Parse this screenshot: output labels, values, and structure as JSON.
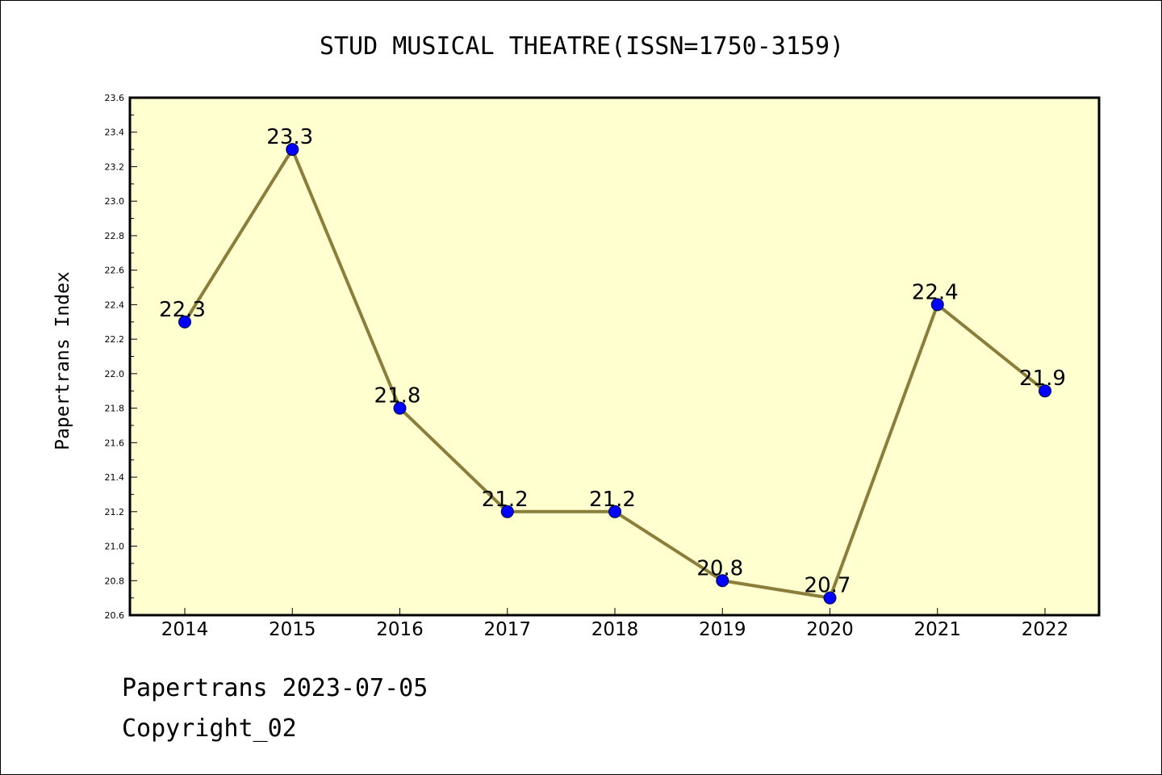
{
  "chart_data": {
    "type": "line",
    "title": "STUD MUSICAL THEATRE(ISSN=1750-3159)",
    "xlabel": "",
    "ylabel": "Papertrans Index",
    "categories": [
      "2014",
      "2015",
      "2016",
      "2017",
      "2018",
      "2019",
      "2020",
      "2021",
      "2022"
    ],
    "series": [
      {
        "values": [
          22.3,
          23.3,
          21.8,
          21.2,
          21.2,
          20.8,
          20.7,
          22.4,
          21.9
        ]
      }
    ],
    "data_labels": [
      "22.3",
      "23.3",
      "21.8",
      "21.2",
      "21.2",
      "20.8",
      "20.7",
      "22.4",
      "21.9"
    ],
    "ylim": [
      20.6,
      23.6
    ],
    "yticks": [
      "20.6",
      "20.8",
      "21.0",
      "21.2",
      "21.4",
      "21.6",
      "21.8",
      "22.0",
      "22.2",
      "22.4",
      "22.6",
      "22.8",
      "23.0",
      "23.2",
      "23.4",
      "23.6"
    ],
    "grid": false,
    "legend": "none",
    "colors": {
      "plot_background": "#ffffd0",
      "line": "#8b7d3a",
      "marker": "#0000ff"
    }
  },
  "footer": {
    "date_line": "Papertrans 2023-07-05",
    "copyright": "Copyright_02"
  }
}
